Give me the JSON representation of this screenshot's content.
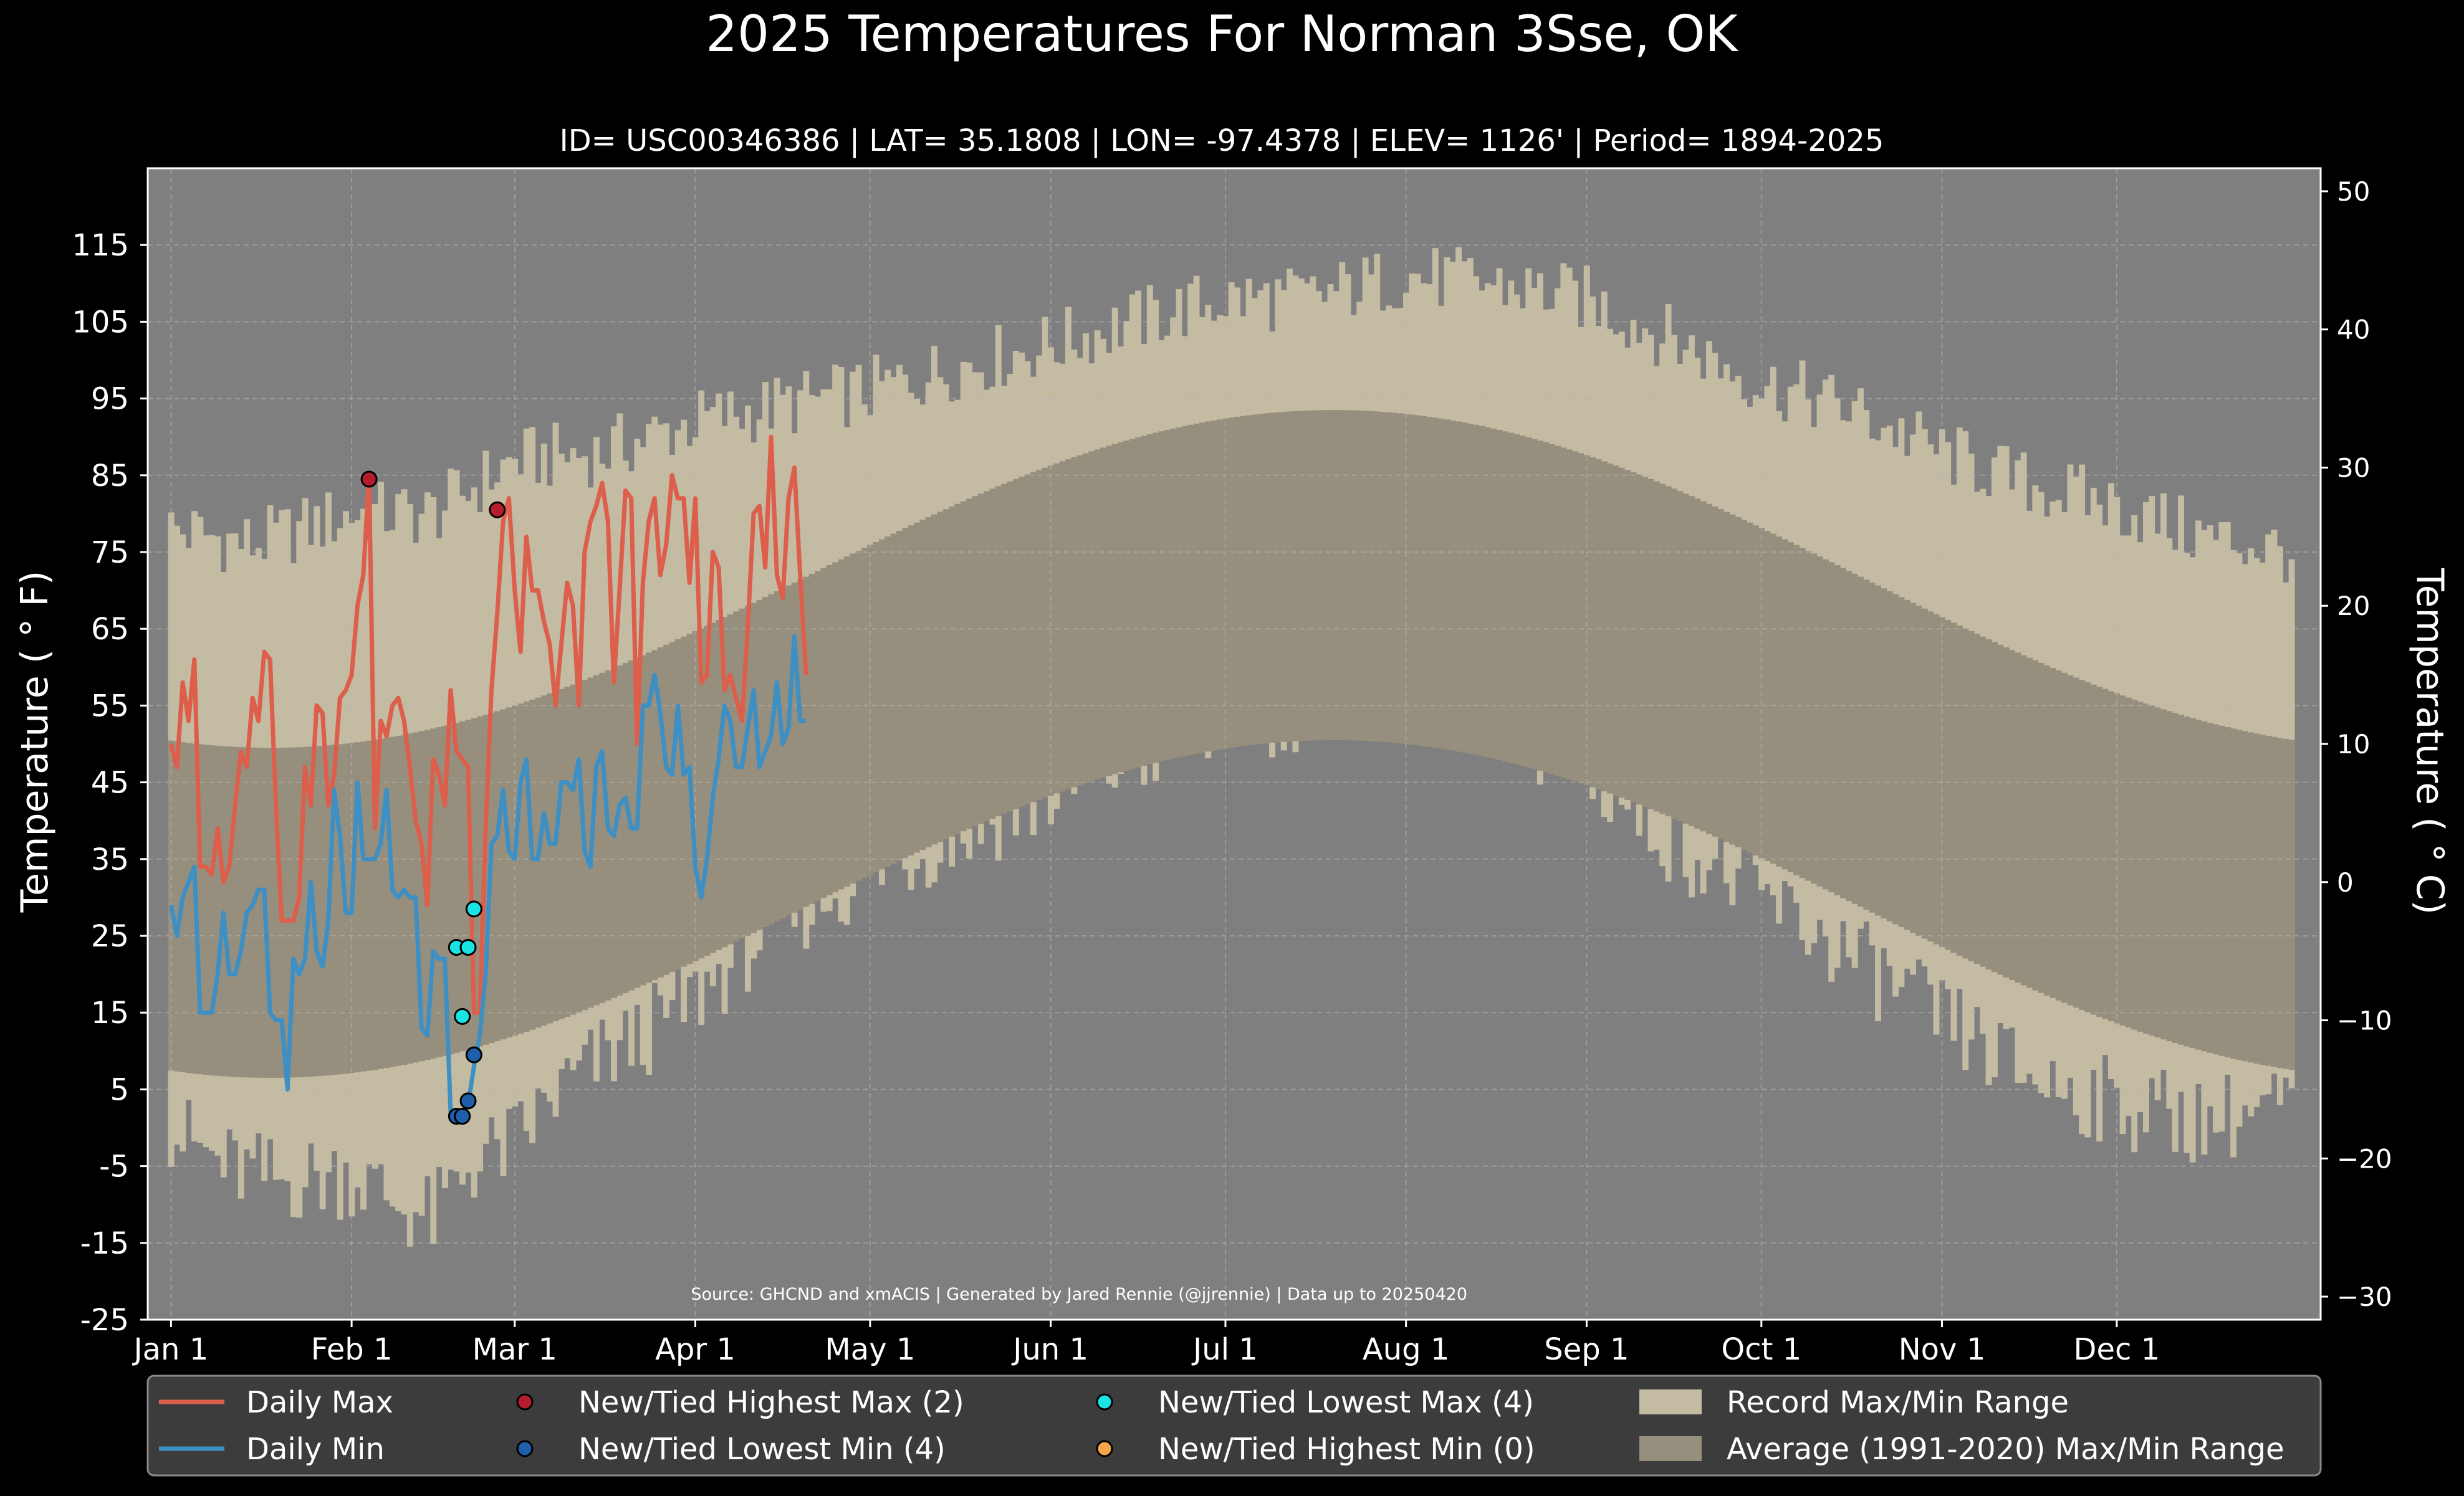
{
  "chart_data": {
    "type": "area",
    "title": "2025 Temperatures For Norman 3Sse, OK",
    "subtitle": "ID= USC00346386 | LAT= 35.1808 | LON= -97.4378 | ELEV= 1126' | Period= 1894-2025",
    "ylabel_left": "Temperature ( $^\\circ$F)",
    "ylabel_left_display": "Temperature ( ° F)",
    "ylabel_right_display": "Temperature ( ° C)",
    "source": "Source: GHCND and xmACIS | Generated by Jared Rennie (@jjrennie) | Data up to 20250420",
    "ylim_f": [
      -25,
      125
    ],
    "ylim_c": [
      -31.67,
      51.67
    ],
    "xlim_day": [
      -3,
      370
    ],
    "grid": true,
    "yticks_f": [
      -25,
      -15,
      -5,
      5,
      15,
      25,
      35,
      45,
      55,
      65,
      75,
      85,
      95,
      105,
      115
    ],
    "yticks_c": [
      -30,
      -20,
      -10,
      0,
      10,
      20,
      30,
      40,
      50
    ],
    "ytick_labels_c": [
      "−30",
      "−20",
      "−10",
      "0",
      "10",
      "20",
      "30",
      "40",
      "50"
    ],
    "xticks": [
      {
        "label": "Jan 1",
        "day": 1
      },
      {
        "label": "Feb 1",
        "day": 32
      },
      {
        "label": "Mar 1",
        "day": 60
      },
      {
        "label": "Apr 1",
        "day": 91
      },
      {
        "label": "May 1",
        "day": 121
      },
      {
        "label": "Jun 1",
        "day": 152
      },
      {
        "label": "Jul 1",
        "day": 182
      },
      {
        "label": "Aug 1",
        "day": 213
      },
      {
        "label": "Sep 1",
        "day": 244
      },
      {
        "label": "Oct 1",
        "day": 274
      },
      {
        "label": "Nov 1",
        "day": 305
      },
      {
        "label": "Dec 1",
        "day": 335
      }
    ],
    "record_range": {
      "name": "Record Max/Min Range",
      "color": "#c4bba3",
      "max_anchors": [
        [
          1,
          78
        ],
        [
          15,
          76
        ],
        [
          32,
          80
        ],
        [
          46,
          80
        ],
        [
          60,
          87
        ],
        [
          75,
          88
        ],
        [
          91,
          92
        ],
        [
          105,
          94
        ],
        [
          121,
          96
        ],
        [
          135,
          99
        ],
        [
          152,
          102
        ],
        [
          166,
          105
        ],
        [
          182,
          108
        ],
        [
          196,
          108
        ],
        [
          213,
          111
        ],
        [
          227,
          110
        ],
        [
          244,
          108
        ],
        [
          258,
          103
        ],
        [
          274,
          97
        ],
        [
          288,
          94
        ],
        [
          305,
          88
        ],
        [
          319,
          84
        ],
        [
          335,
          81
        ],
        [
          350,
          77
        ],
        [
          365,
          75
        ]
      ],
      "min_anchors": [
        [
          1,
          0
        ],
        [
          10,
          -5
        ],
        [
          20,
          -7
        ],
        [
          32,
          -6
        ],
        [
          40,
          -10
        ],
        [
          46,
          -12
        ],
        [
          52,
          -5
        ],
        [
          60,
          -2
        ],
        [
          68,
          5
        ],
        [
          75,
          9
        ],
        [
          82,
          12
        ],
        [
          91,
          17
        ],
        [
          105,
          27
        ],
        [
          121,
          33
        ],
        [
          135,
          38
        ],
        [
          152,
          43
        ],
        [
          166,
          48
        ],
        [
          182,
          53
        ],
        [
          196,
          55
        ],
        [
          213,
          57
        ],
        [
          227,
          54
        ],
        [
          244,
          46
        ],
        [
          258,
          38
        ],
        [
          274,
          30
        ],
        [
          288,
          23
        ],
        [
          305,
          14
        ],
        [
          319,
          7
        ],
        [
          335,
          3
        ],
        [
          350,
          1
        ],
        [
          365,
          3
        ]
      ]
    },
    "normal_range": {
      "name": "Average (1991-2020) Max/Min Range",
      "color": "#978f7e",
      "normal_max_mean": 71.5,
      "normal_max_amp": 22,
      "normal_min_mean": 50,
      "normal_min_amp": 22,
      "coldest_day": 18,
      "period_days": 365
    },
    "series": [
      {
        "name": "Daily Max",
        "color": "#dc5e4b",
        "x": [
          1,
          2,
          3,
          4,
          5,
          6,
          7,
          8,
          9,
          10,
          11,
          12,
          13,
          14,
          15,
          16,
          17,
          18,
          19,
          20,
          21,
          22,
          23,
          24,
          25,
          26,
          27,
          28,
          29,
          30,
          31,
          32,
          33,
          34,
          35,
          36,
          37,
          38,
          39,
          40,
          41,
          42,
          43,
          44,
          45,
          46,
          47,
          48,
          49,
          50,
          51,
          52,
          53,
          54,
          55,
          56,
          57,
          58,
          59,
          60,
          61,
          62,
          63,
          64,
          65,
          66,
          67,
          68,
          69,
          70,
          71,
          72,
          73,
          74,
          75,
          76,
          77,
          78,
          79,
          80,
          81,
          82,
          83,
          84,
          85,
          86,
          87,
          88,
          89,
          90,
          91,
          92,
          93,
          94,
          95,
          96,
          97,
          98,
          99,
          100,
          101,
          102,
          103,
          104,
          105,
          106,
          107,
          108,
          109,
          110
        ],
        "values": [
          50,
          47,
          58,
          53,
          61,
          34,
          34,
          33,
          39,
          32,
          34,
          42,
          49,
          47,
          56,
          53,
          62,
          61,
          42,
          27,
          27,
          27,
          30,
          47,
          42,
          55,
          54,
          42,
          46,
          56,
          57,
          59,
          68,
          72,
          85,
          39,
          53,
          51,
          55,
          56,
          53,
          47,
          40,
          37,
          29,
          48,
          46,
          42,
          57,
          49,
          48,
          47,
          15,
          15,
          39,
          57,
          67,
          79,
          82,
          70,
          62,
          77,
          70,
          70,
          66,
          63,
          55,
          63,
          71,
          68,
          55,
          75,
          79,
          81,
          84,
          79,
          58,
          70,
          83,
          82,
          50,
          71,
          79,
          82,
          72,
          76,
          85,
          82,
          82,
          71,
          82,
          58,
          59,
          75,
          73,
          57,
          59,
          56,
          53,
          65,
          80,
          81,
          73,
          90,
          72,
          69,
          82,
          86,
          72,
          59
        ]
      },
      {
        "name": "Daily Min",
        "color": "#3d8fc4",
        "x": [
          1,
          2,
          3,
          4,
          5,
          6,
          7,
          8,
          9,
          10,
          11,
          12,
          13,
          14,
          15,
          16,
          17,
          18,
          19,
          20,
          21,
          22,
          23,
          24,
          25,
          26,
          27,
          28,
          29,
          30,
          31,
          32,
          33,
          34,
          35,
          36,
          37,
          38,
          39,
          40,
          41,
          42,
          43,
          44,
          45,
          46,
          47,
          48,
          49,
          50,
          51,
          52,
          53,
          54,
          55,
          56,
          57,
          58,
          59,
          60,
          61,
          62,
          63,
          64,
          65,
          66,
          67,
          68,
          69,
          70,
          71,
          72,
          73,
          74,
          75,
          76,
          77,
          78,
          79,
          80,
          81,
          82,
          83,
          84,
          85,
          86,
          87,
          88,
          89,
          90,
          91,
          92,
          93,
          94,
          95,
          96,
          97,
          98,
          99,
          100,
          101,
          102,
          103,
          104,
          105,
          106,
          107,
          108,
          109,
          110
        ],
        "values": [
          29,
          25,
          30,
          32,
          34,
          15,
          15,
          15,
          20,
          28,
          20,
          20,
          23,
          28,
          29,
          31,
          31,
          15,
          14,
          14,
          5,
          22,
          20,
          22,
          32,
          23,
          21,
          27,
          44,
          38,
          28,
          28,
          45,
          35,
          35,
          35,
          37,
          44,
          31,
          30,
          31,
          30,
          30,
          13,
          12,
          23,
          22,
          22,
          2,
          2,
          2,
          3,
          8,
          12,
          20,
          37,
          38,
          44,
          36,
          35,
          45,
          48,
          35,
          35,
          41,
          37,
          37,
          45,
          45,
          44,
          48,
          36,
          34,
          47,
          49,
          39,
          38,
          42,
          43,
          39,
          39,
          55,
          55,
          59,
          54,
          47,
          46,
          55,
          46,
          47,
          34,
          30,
          35,
          43,
          48,
          55,
          53,
          47,
          47,
          52,
          57,
          47,
          49,
          51,
          58,
          50,
          52,
          64,
          53,
          53
        ]
      }
    ],
    "markers": [
      {
        "name": "New/Tied Highest Max (2)",
        "color": "#b51d2c",
        "points": [
          [
            35,
            84.5
          ],
          [
            57,
            80.5
          ]
        ]
      },
      {
        "name": "New/Tied Lowest Min (4)",
        "color": "#1f5ea8",
        "points": [
          [
            50,
            1.5
          ],
          [
            51,
            1.5
          ],
          [
            52,
            3.5
          ],
          [
            53,
            9.5
          ]
        ]
      },
      {
        "name": "New/Tied Lowest Max (4)",
        "color": "#19e3e3",
        "points": [
          [
            50,
            23.5
          ],
          [
            51,
            14.5
          ],
          [
            52,
            23.5
          ],
          [
            53,
            28.5
          ]
        ]
      },
      {
        "name": "New/Tied Highest Min (0)",
        "color": "#f5a54a",
        "points": []
      }
    ],
    "legend": {
      "placement": "bottom",
      "items": [
        {
          "label": "Daily Max",
          "kind": "line",
          "color": "#dc5e4b"
        },
        {
          "label": "Daily Min",
          "kind": "line",
          "color": "#3d8fc4"
        },
        {
          "label": "New/Tied Highest Max (2)",
          "kind": "dot",
          "color": "#b51d2c"
        },
        {
          "label": "New/Tied Lowest Min (4)",
          "kind": "dot",
          "color": "#1f5ea8"
        },
        {
          "label": "New/Tied Lowest Max (4)",
          "kind": "dot",
          "color": "#19e3e3"
        },
        {
          "label": "New/Tied Highest Min (0)",
          "kind": "dot",
          "color": "#f5a54a"
        },
        {
          "label": "Record Max/Min Range",
          "kind": "patch",
          "color": "#c4bba3"
        },
        {
          "label": "Average (1991-2020) Max/Min Range",
          "kind": "patch",
          "color": "#978f7e"
        }
      ]
    },
    "colors": {
      "background": "#000000",
      "plot_background": "#7f7f7f",
      "grid": "#b4b4b4",
      "legend_background": "#3c3c3c",
      "text": "#ffffff"
    }
  }
}
